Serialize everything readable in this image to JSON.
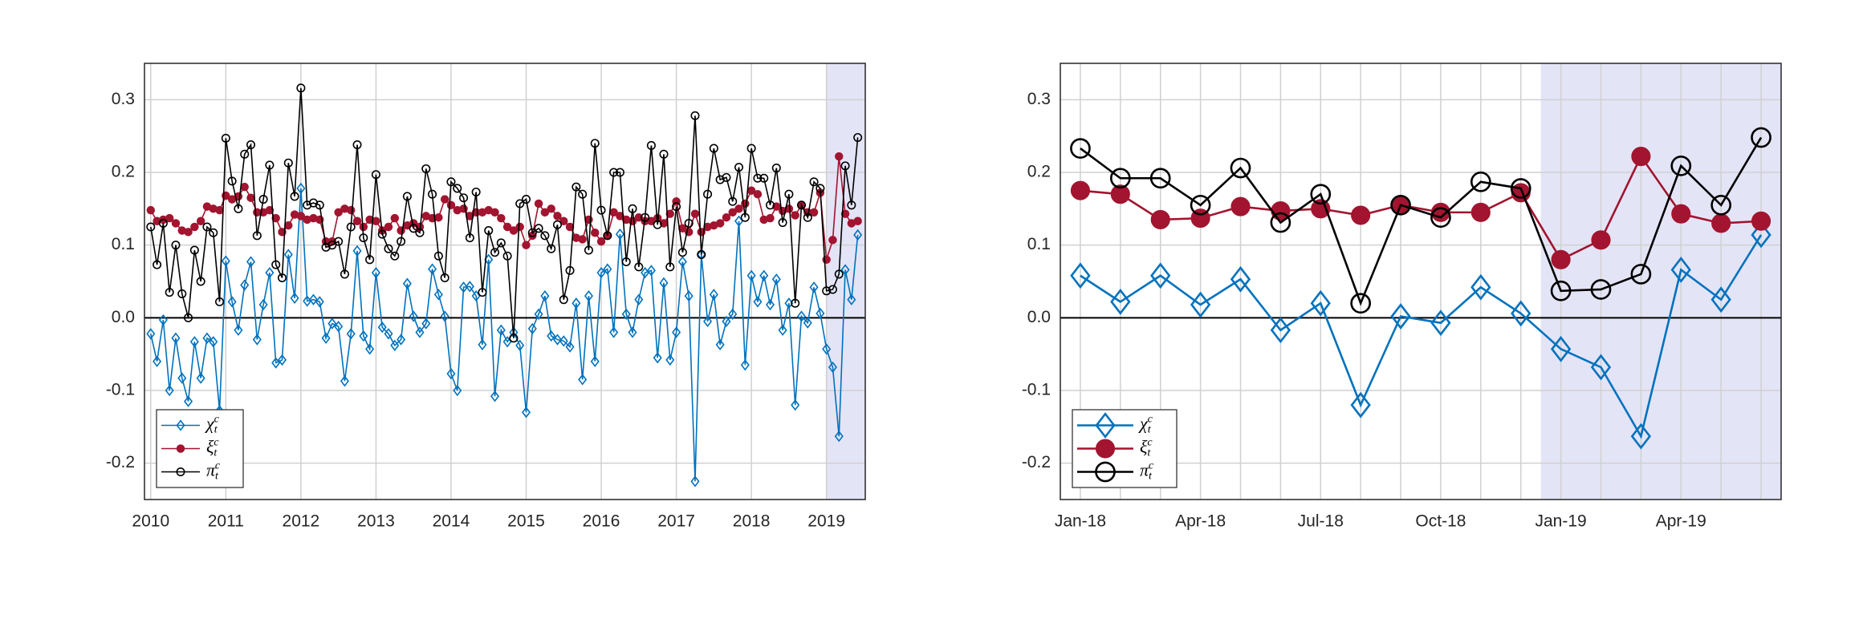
{
  "chart_data": [
    {
      "type": "line",
      "categories": [
        "2010",
        null,
        null,
        null,
        null,
        null,
        null,
        null,
        null,
        null,
        null,
        null,
        "2011",
        null,
        null,
        null,
        null,
        null,
        null,
        null,
        null,
        null,
        null,
        null,
        "2012",
        null,
        null,
        null,
        null,
        null,
        null,
        null,
        null,
        null,
        null,
        null,
        "2013",
        null,
        null,
        null,
        null,
        null,
        null,
        null,
        null,
        null,
        null,
        null,
        "2014",
        null,
        null,
        null,
        null,
        null,
        null,
        null,
        null,
        null,
        null,
        null,
        "2015",
        null,
        null,
        null,
        null,
        null,
        null,
        null,
        null,
        null,
        null,
        null,
        "2016",
        null,
        null,
        null,
        null,
        null,
        null,
        null,
        null,
        null,
        null,
        null,
        "2017",
        null,
        null,
        null,
        null,
        null,
        null,
        null,
        null,
        null,
        null,
        null,
        "2018",
        null,
        null,
        null,
        null,
        null,
        null,
        null,
        null,
        null,
        null,
        null,
        "2019",
        null,
        null,
        null,
        null,
        null
      ],
      "series": [
        {
          "name": "χ_t^c",
          "color": "#0072bd",
          "marker": "diamond",
          "values": [
            -0.022,
            -0.06,
            -0.003,
            -0.1,
            -0.028,
            -0.083,
            -0.115,
            -0.033,
            -0.083,
            -0.028,
            -0.033,
            -0.128,
            0.078,
            0.022,
            -0.017,
            0.045,
            0.077,
            -0.03,
            0.018,
            0.062,
            -0.062,
            -0.058,
            0.087,
            0.027,
            0.178,
            0.023,
            0.025,
            0.022,
            -0.028,
            -0.008,
            -0.012,
            -0.087,
            -0.022,
            0.092,
            -0.025,
            -0.043,
            0.062,
            -0.013,
            -0.022,
            -0.038,
            -0.03,
            0.047,
            0.002,
            -0.02,
            -0.008,
            0.067,
            0.032,
            0.002,
            -0.077,
            -0.1,
            0.042,
            0.043,
            0.03,
            -0.037,
            0.08,
            -0.108,
            -0.017,
            -0.033,
            -0.02,
            -0.038,
            -0.13,
            -0.015,
            0.005,
            0.03,
            -0.025,
            -0.03,
            -0.032,
            -0.04,
            0.02,
            -0.085,
            0.03,
            -0.06,
            0.062,
            0.067,
            -0.02,
            0.115,
            0.005,
            -0.02,
            0.025,
            0.062,
            0.065,
            -0.055,
            0.048,
            -0.058,
            -0.02,
            0.077,
            0.03,
            -0.225,
            0.087,
            -0.005,
            0.032,
            -0.037,
            -0.005,
            0.005,
            0.133,
            -0.065,
            0.058,
            0.022,
            0.058,
            0.018,
            0.053,
            -0.017,
            0.02,
            -0.12,
            0.002,
            -0.007,
            0.042,
            0.006,
            -0.043,
            -0.068,
            -0.163,
            0.066,
            0.025,
            0.114
          ]
        },
        {
          "name": "ξ_t^c",
          "color": "#a2142f",
          "marker": "dot",
          "values": [
            0.148,
            0.133,
            0.135,
            0.137,
            0.13,
            0.12,
            0.118,
            0.125,
            0.133,
            0.153,
            0.15,
            0.148,
            0.168,
            0.163,
            0.167,
            0.18,
            0.165,
            0.145,
            0.145,
            0.148,
            0.137,
            0.118,
            0.127,
            0.142,
            0.14,
            0.135,
            0.137,
            0.135,
            0.105,
            0.105,
            0.145,
            0.15,
            0.148,
            0.133,
            0.125,
            0.135,
            0.133,
            0.12,
            0.125,
            0.137,
            0.12,
            0.127,
            0.13,
            0.125,
            0.14,
            0.137,
            0.138,
            0.163,
            0.155,
            0.148,
            0.15,
            0.14,
            0.145,
            0.145,
            0.148,
            0.145,
            0.137,
            0.125,
            0.12,
            0.125,
            0.1,
            0.113,
            0.157,
            0.145,
            0.15,
            0.14,
            0.133,
            0.125,
            0.11,
            0.108,
            0.135,
            0.117,
            0.105,
            0.113,
            0.145,
            0.14,
            0.135,
            0.133,
            0.138,
            0.133,
            0.133,
            0.137,
            0.13,
            0.143,
            0.16,
            0.123,
            0.118,
            0.143,
            0.118,
            0.125,
            0.127,
            0.13,
            0.138,
            0.145,
            0.15,
            0.157,
            0.175,
            0.17,
            0.135,
            0.137,
            0.153,
            0.147,
            0.15,
            0.141,
            0.155,
            0.145,
            0.145,
            0.172,
            0.08,
            0.107,
            0.222,
            0.143,
            0.13,
            0.133
          ]
        },
        {
          "name": "π_t^c",
          "color": "#000000",
          "marker": "circle",
          "values": [
            0.125,
            0.073,
            0.13,
            0.035,
            0.1,
            0.033,
            0.0,
            0.093,
            0.05,
            0.125,
            0.117,
            0.022,
            0.247,
            0.188,
            0.15,
            0.225,
            0.238,
            0.113,
            0.163,
            0.21,
            0.073,
            0.055,
            0.213,
            0.167,
            0.316,
            0.155,
            0.158,
            0.155,
            0.097,
            0.1,
            0.105,
            0.06,
            0.125,
            0.238,
            0.11,
            0.08,
            0.197,
            0.115,
            0.095,
            0.085,
            0.105,
            0.167,
            0.123,
            0.117,
            0.205,
            0.17,
            0.085,
            0.055,
            0.187,
            0.178,
            0.165,
            0.11,
            0.173,
            0.035,
            0.12,
            0.09,
            0.103,
            0.085,
            -0.028,
            0.157,
            0.163,
            0.117,
            0.123,
            0.113,
            0.095,
            0.128,
            0.025,
            0.065,
            0.18,
            0.17,
            0.093,
            0.24,
            0.148,
            0.113,
            0.2,
            0.2,
            0.077,
            0.15,
            0.07,
            0.138,
            0.237,
            0.128,
            0.225,
            0.07,
            0.153,
            0.09,
            0.13,
            0.278,
            0.087,
            0.17,
            0.233,
            0.19,
            0.193,
            0.16,
            0.207,
            0.138,
            0.233,
            0.192,
            0.192,
            0.155,
            0.206,
            0.131,
            0.17,
            0.02,
            0.155,
            0.138,
            0.187,
            0.178,
            0.037,
            0.039,
            0.06,
            0.209,
            0.155,
            0.248
          ]
        }
      ],
      "ylim": [
        -0.25,
        0.35
      ],
      "yticks": [
        -0.2,
        -0.1,
        {
          "value": 0,
          "label": "0.0"
        },
        0.1,
        0.2,
        0.3
      ],
      "grid": true,
      "legend": "lower left"
    },
    {
      "type": "line",
      "categories": [
        "Jan-18",
        null,
        null,
        "Apr-18",
        null,
        null,
        "Jul-18",
        null,
        null,
        "Oct-18",
        null,
        null,
        "Jan-19",
        null,
        null,
        "Apr-19",
        null,
        null
      ],
      "series": [
        {
          "name": "χ_t^c",
          "color": "#0072bd",
          "marker": "diamond",
          "values": [
            0.058,
            0.022,
            0.058,
            0.018,
            0.053,
            -0.017,
            0.02,
            -0.12,
            0.002,
            -0.007,
            0.042,
            0.006,
            -0.043,
            -0.068,
            -0.163,
            0.066,
            0.025,
            0.114
          ]
        },
        {
          "name": "ξ_t^c",
          "color": "#a2142f",
          "marker": "dot",
          "values": [
            0.175,
            0.17,
            0.135,
            0.137,
            0.153,
            0.147,
            0.15,
            0.141,
            0.155,
            0.145,
            0.145,
            0.172,
            0.08,
            0.107,
            0.222,
            0.143,
            0.13,
            0.133
          ]
        },
        {
          "name": "π_t^c",
          "color": "#000000",
          "marker": "circle",
          "values": [
            0.233,
            0.192,
            0.192,
            0.155,
            0.206,
            0.131,
            0.17,
            0.02,
            0.155,
            0.138,
            0.187,
            0.178,
            0.037,
            0.039,
            0.06,
            0.209,
            0.155,
            0.248
          ]
        }
      ],
      "ylim": [
        -0.25,
        0.35
      ],
      "yticks": [
        -0.2,
        -0.1,
        {
          "value": 0,
          "label": "0.0"
        },
        0.1,
        0.2,
        0.3
      ],
      "grid": true,
      "minor_grid": true,
      "legend": "lower left"
    }
  ]
}
